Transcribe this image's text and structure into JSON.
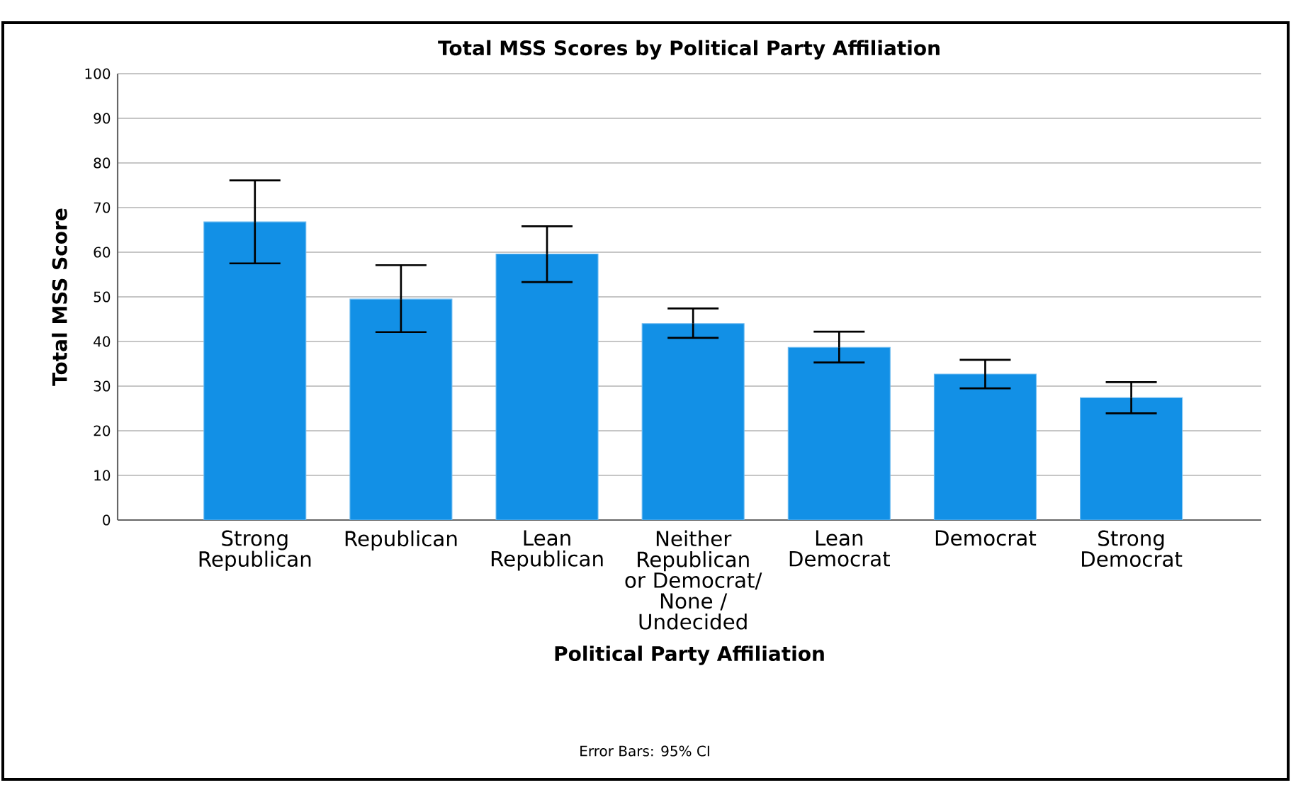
{
  "chart_data": {
    "type": "bar",
    "title": "Total MSS Scores by Political Party Affiliation",
    "xlabel": "Political Party Affiliation",
    "ylabel": "Total MSS Score",
    "categories": [
      "Strong Republican",
      "Republican",
      "Lean Republican",
      "Neither Republican or Democrat/ None / Undecided",
      "Lean Democrat",
      "Democrat",
      "Strong Democrat"
    ],
    "values": [
      66.8,
      49.5,
      59.6,
      44.0,
      38.7,
      32.7,
      27.4
    ],
    "errors": [
      [
        57.5,
        76.1
      ],
      [
        42.1,
        57.1
      ],
      [
        53.3,
        65.8
      ],
      [
        40.8,
        47.4
      ],
      [
        35.3,
        42.2
      ],
      [
        29.5,
        35.9
      ],
      [
        23.9,
        30.9
      ]
    ],
    "color": "#1290e6",
    "ylim": [
      0,
      100
    ],
    "yticks": [
      0,
      10,
      20,
      30,
      40,
      50,
      60,
      70,
      80,
      90,
      100
    ],
    "grid": "y",
    "annotations": [
      "Error Bars: 95% CI"
    ]
  }
}
